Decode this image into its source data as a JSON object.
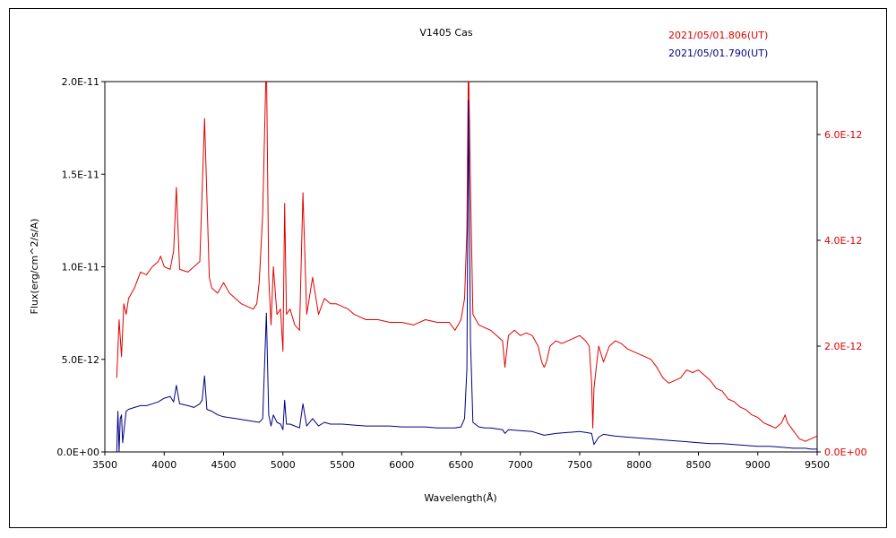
{
  "chart_data": {
    "type": "line",
    "title": "V1405 Cas",
    "xlabel": "Wavelength(Å)",
    "ylabel": "Flux(erg/cm^2/s/A)",
    "xlim": [
      3500,
      9500
    ],
    "ylim_left": [
      0,
      2e-11
    ],
    "ylim_right": [
      0,
      7e-12
    ],
    "x_ticks": [
      "3500",
      "4000",
      "4500",
      "5000",
      "5500",
      "6000",
      "6500",
      "7000",
      "7500",
      "8000",
      "8500",
      "9000",
      "9500"
    ],
    "y_ticks_left": [
      "0.0E+00",
      "5.0E-12",
      "1.0E-11",
      "1.5E-11",
      "2.0E-11"
    ],
    "y_ticks_right": [
      "0.0E+00",
      "2.0E-12",
      "4.0E-12",
      "6.0E-12"
    ],
    "grid": false,
    "legend_position": "top-right",
    "colors": {
      "red": "#e00000",
      "blue": "#000080"
    },
    "series": [
      {
        "name": "2021/05/01.806(UT)",
        "axis": "right",
        "color": "#e00000",
        "x": [
          3600,
          3620,
          3640,
          3660,
          3680,
          3700,
          3750,
          3800,
          3850,
          3900,
          3950,
          3970,
          4000,
          4050,
          4080,
          4102,
          4130,
          4200,
          4300,
          4340,
          4380,
          4400,
          4450,
          4500,
          4550,
          4600,
          4650,
          4700,
          4750,
          4780,
          4800,
          4830,
          4861,
          4880,
          4900,
          4920,
          4950,
          4980,
          5000,
          5015,
          5030,
          5060,
          5100,
          5140,
          5169,
          5200,
          5250,
          5300,
          5350,
          5400,
          5450,
          5500,
          5550,
          5600,
          5650,
          5700,
          5800,
          5900,
          6000,
          6100,
          6200,
          6300,
          6400,
          6450,
          6500,
          6530,
          6550,
          6563,
          6580,
          6600,
          6650,
          6700,
          6750,
          6800,
          6850,
          6870,
          6900,
          6950,
          7000,
          7050,
          7100,
          7150,
          7180,
          7200,
          7220,
          7250,
          7300,
          7350,
          7400,
          7450,
          7500,
          7550,
          7580,
          7600,
          7610,
          7620,
          7640,
          7660,
          7700,
          7750,
          7800,
          7850,
          7900,
          7950,
          8000,
          8050,
          8100,
          8150,
          8200,
          8250,
          8300,
          8350,
          8400,
          8450,
          8500,
          8550,
          8600,
          8650,
          8700,
          8750,
          8800,
          8850,
          8900,
          8950,
          9000,
          9050,
          9100,
          9150,
          9200,
          9230,
          9250,
          9300,
          9350,
          9400,
          9450,
          9500
        ],
        "y": [
          1.4e-12,
          2.5e-12,
          1.8e-12,
          2.8e-12,
          2.6e-12,
          2.9e-12,
          3.1e-12,
          3.4e-12,
          3.35e-12,
          3.5e-12,
          3.6e-12,
          3.7e-12,
          3.5e-12,
          3.45e-12,
          3.8e-12,
          5e-12,
          3.45e-12,
          3.4e-12,
          3.6e-12,
          6.3e-12,
          3.3e-12,
          3.1e-12,
          3e-12,
          3.2e-12,
          3e-12,
          2.9e-12,
          2.8e-12,
          2.75e-12,
          2.7e-12,
          2.8e-12,
          3.2e-12,
          4.5e-12,
          7.5e-12,
          3.3e-12,
          2.4e-12,
          3.5e-12,
          2.6e-12,
          2.7e-12,
          1.9e-12,
          4.7e-12,
          2.6e-12,
          2.7e-12,
          2.4e-12,
          2.3e-12,
          4.9e-12,
          2.6e-12,
          3.3e-12,
          2.6e-12,
          2.9e-12,
          2.8e-12,
          2.8e-12,
          2.75e-12,
          2.7e-12,
          2.6e-12,
          2.55e-12,
          2.5e-12,
          2.5e-12,
          2.45e-12,
          2.45e-12,
          2.4e-12,
          2.5e-12,
          2.45e-12,
          2.45e-12,
          2.3e-12,
          2.5e-12,
          2.9e-12,
          4.2e-12,
          7.5e-12,
          5e-12,
          2.6e-12,
          2.4e-12,
          2.35e-12,
          2.3e-12,
          2.2e-12,
          2.1e-12,
          1.6e-12,
          2.2e-12,
          2.3e-12,
          2.2e-12,
          2.25e-12,
          2.2e-12,
          2e-12,
          1.7e-12,
          1.6e-12,
          1.7e-12,
          2e-12,
          2.1e-12,
          2.05e-12,
          2.1e-12,
          2.15e-12,
          2.2e-12,
          2.1e-12,
          2e-12,
          1.3e-12,
          4.5e-13,
          1.2e-12,
          1.6e-12,
          2e-12,
          1.7e-12,
          2e-12,
          2.1e-12,
          2.05e-12,
          1.95e-12,
          1.9e-12,
          1.85e-12,
          1.8e-12,
          1.75e-12,
          1.6e-12,
          1.4e-12,
          1.3e-12,
          1.35e-12,
          1.4e-12,
          1.55e-12,
          1.5e-12,
          1.55e-12,
          1.45e-12,
          1.35e-12,
          1.2e-12,
          1.15e-12,
          1e-12,
          9.5e-13,
          8.5e-13,
          8e-13,
          7e-13,
          6.5e-13,
          5.5e-13,
          5e-13,
          4.5e-13,
          5.5e-13,
          7e-13,
          5.5e-13,
          4e-13,
          2.5e-13,
          2e-13,
          2.5e-13,
          3e-13
        ]
      },
      {
        "name": "2021/05/01.790(UT)",
        "axis": "left",
        "color": "#000080",
        "x": [
          3600,
          3610,
          3620,
          3630,
          3640,
          3650,
          3680,
          3700,
          3750,
          3800,
          3850,
          3900,
          3950,
          4000,
          4050,
          4080,
          4102,
          4130,
          4200,
          4250,
          4300,
          4320,
          4340,
          4360,
          4400,
          4450,
          4500,
          4550,
          4600,
          4700,
          4800,
          4830,
          4861,
          4880,
          4900,
          4920,
          4950,
          4980,
          5000,
          5015,
          5030,
          5060,
          5100,
          5140,
          5169,
          5200,
          5250,
          5300,
          5350,
          5400,
          5500,
          5600,
          5700,
          5800,
          5900,
          6000,
          6100,
          6200,
          6300,
          6400,
          6450,
          6500,
          6530,
          6550,
          6563,
          6580,
          6600,
          6650,
          6700,
          6750,
          6800,
          6850,
          6870,
          6900,
          7000,
          7100,
          7200,
          7300,
          7400,
          7500,
          7550,
          7600,
          7620,
          7640,
          7660,
          7700,
          7800,
          7900,
          8000,
          8100,
          8200,
          8300,
          8400,
          8500,
          8600,
          8700,
          8800,
          8900,
          9000,
          9100,
          9200,
          9300,
          9400,
          9450,
          9500
        ],
        "y": [
          0,
          2.2e-12,
          0,
          1.8e-12,
          2e-12,
          5e-13,
          2.2e-12,
          2.3e-12,
          2.4e-12,
          2.5e-12,
          2.5e-12,
          2.6e-12,
          2.7e-12,
          2.9e-12,
          3e-12,
          2.7e-12,
          3.6e-12,
          2.6e-12,
          2.5e-12,
          2.4e-12,
          2.6e-12,
          2.8e-12,
          4.1e-12,
          2.3e-12,
          2.2e-12,
          2e-12,
          1.9e-12,
          1.85e-12,
          1.8e-12,
          1.7e-12,
          1.6e-12,
          1.8e-12,
          7.5e-12,
          2e-12,
          1.4e-12,
          2e-12,
          1.6e-12,
          1.5e-12,
          1.2e-12,
          2.8e-12,
          1.5e-12,
          1.5e-12,
          1.4e-12,
          1.3e-12,
          2.6e-12,
          1.4e-12,
          1.8e-12,
          1.4e-12,
          1.6e-12,
          1.5e-12,
          1.5e-12,
          1.45e-12,
          1.4e-12,
          1.4e-12,
          1.4e-12,
          1.35e-12,
          1.35e-12,
          1.35e-12,
          1.3e-12,
          1.3e-12,
          1.3e-12,
          1.35e-12,
          1.8e-12,
          4.5e-12,
          1.9e-11,
          6e-12,
          1.6e-12,
          1.35e-12,
          1.3e-12,
          1.3e-12,
          1.25e-12,
          1.2e-12,
          1e-12,
          1.2e-12,
          1.15e-12,
          1.1e-12,
          9e-13,
          1e-12,
          1.05e-12,
          1.1e-12,
          1.05e-12,
          1e-12,
          4e-13,
          6e-13,
          8e-13,
          9.5e-13,
          8.5e-13,
          8e-13,
          7.5e-13,
          7e-13,
          6.5e-13,
          6e-13,
          5.5e-13,
          5e-13,
          4.5e-13,
          4.5e-13,
          4e-13,
          3.5e-13,
          3e-13,
          3e-13,
          2.5e-13,
          2e-13,
          2e-13,
          1.5e-13,
          1.5e-13
        ]
      }
    ]
  }
}
